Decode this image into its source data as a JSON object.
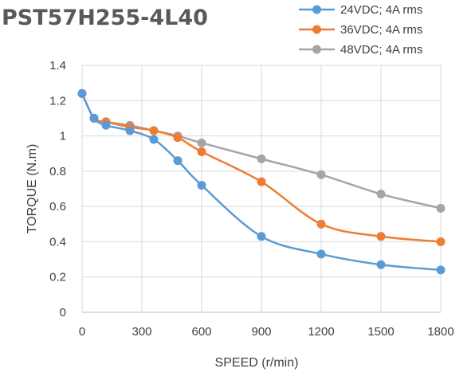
{
  "chart_data": {
    "type": "line",
    "title": "PST57H255-4L40",
    "xlabel": "SPEED (r/min)",
    "ylabel": "TORQUE (N.m)",
    "xlim": [
      0,
      1800
    ],
    "ylim": [
      0,
      1.4
    ],
    "xticks": [
      "0",
      "300",
      "600",
      "900",
      "1200",
      "1500",
      "1800"
    ],
    "yticks": [
      "0",
      "0.2",
      "0.4",
      "0.6",
      "0.8",
      "1",
      "1.2",
      "1.4"
    ],
    "grid": "vertical and horizontal",
    "legend_position": "top-right",
    "series": [
      {
        "name": "24VDC; 4A rms",
        "color": "#5B9BD5",
        "x": [
          0,
          60,
          120,
          240,
          360,
          480,
          600,
          900,
          1200,
          1500,
          1800
        ],
        "y": [
          1.24,
          1.1,
          1.06,
          1.03,
          0.98,
          0.86,
          0.72,
          0.43,
          0.33,
          0.27,
          0.24
        ]
      },
      {
        "name": "36VDC; 4A rms",
        "color": "#ED7D31",
        "x": [
          0,
          60,
          120,
          240,
          360,
          480,
          600,
          900,
          1200,
          1500,
          1800
        ],
        "y": [
          1.24,
          1.1,
          1.08,
          1.05,
          1.03,
          0.99,
          0.91,
          0.74,
          0.5,
          0.43,
          0.4
        ]
      },
      {
        "name": "48VDC; 4A rms",
        "color": "#A5A5A5",
        "x": [
          0,
          60,
          120,
          240,
          360,
          480,
          600,
          900,
          1200,
          1500,
          1800
        ],
        "y": [
          1.24,
          1.1,
          1.08,
          1.06,
          1.03,
          1.0,
          0.96,
          0.87,
          0.78,
          0.67,
          0.59
        ]
      }
    ]
  }
}
